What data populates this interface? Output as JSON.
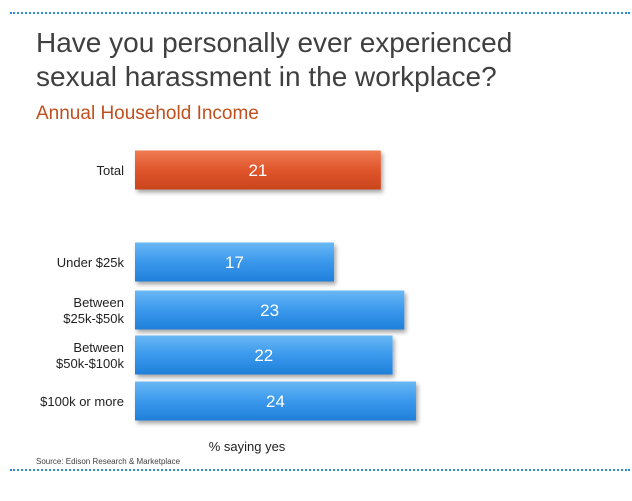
{
  "title": "Have you personally ever experienced sexual harassment in the workplace?",
  "subtitle": "Annual Household Income",
  "source": "Source:  Edison Research & Marketplace",
  "colors": {
    "total_bar": "#e0562c",
    "bar": "#3a98ec",
    "title": "#404040",
    "subtitle": "#c0501f",
    "dotted_rule": "#2e8bd6"
  },
  "chart_data": {
    "type": "bar",
    "orientation": "horizontal",
    "categories": [
      "Total",
      "Under $25k",
      "Between $25k-$50k",
      "Between $50k-$100k",
      "$100k or more"
    ],
    "category_lines": [
      [
        "Total"
      ],
      [
        "Under $25k"
      ],
      [
        "Between",
        "$25k-$50k"
      ],
      [
        "Between",
        "$50k-$100k"
      ],
      [
        "$100k or more"
      ]
    ],
    "values": [
      21,
      17,
      23,
      22,
      24
    ],
    "data_labels": [
      "21",
      "17",
      "23",
      "22",
      "24"
    ],
    "xlabel": "% saying yes",
    "ylabel": "",
    "xlim": [
      0,
      41
    ],
    "grid": false,
    "legend": "none",
    "highlight_category": "Total"
  }
}
